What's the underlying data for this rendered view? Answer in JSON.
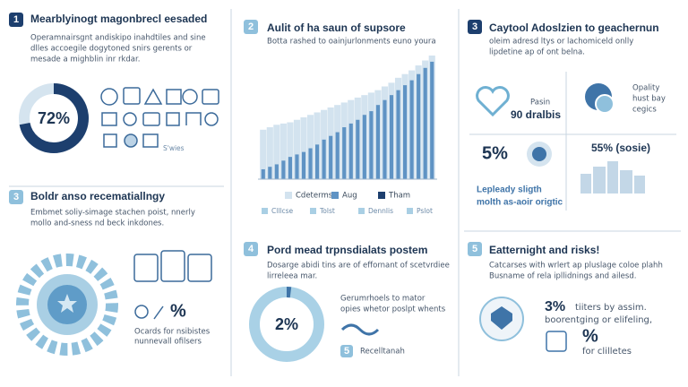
{
  "p1": {
    "badge": "1",
    "title": "Mearblyinogt magonbrecl eesaded",
    "body": [
      "Operamnairsgnt andiskipo inahdtiles and sine",
      "dlles accoegile dogytoned snirs gerents or",
      "mesade a mighblin inr rkdar."
    ],
    "donut": {
      "value": 72,
      "label": "72%"
    },
    "icons_caption": "S'wies"
  },
  "p2": {
    "badge": "2",
    "title": "Aulit of ha saun of supsore",
    "subtitle": "Botta rashed to oainjurlonments euno youra",
    "ylim": [
      0,
      100
    ],
    "series": [
      {
        "color": "#d3e3ef",
        "values": [
          40,
          42,
          44,
          45,
          46,
          48,
          50,
          52,
          54,
          56,
          58,
          60,
          62,
          64,
          66,
          68,
          70,
          72,
          75,
          78,
          82,
          85,
          88,
          92,
          96,
          100
        ]
      },
      {
        "color": "#5f93c4",
        "values": [
          8,
          10,
          12,
          15,
          18,
          20,
          22,
          25,
          28,
          32,
          35,
          38,
          42,
          45,
          48,
          52,
          55,
          60,
          64,
          68,
          72,
          76,
          80,
          85,
          90,
          95
        ]
      }
    ],
    "legend": [
      "Cdeterms",
      "Aug",
      "Tham"
    ],
    "footer": [
      "Clllcse",
      "Tolst",
      "Dennlis",
      "Pslot"
    ]
  },
  "p3": {
    "badge": "3",
    "title": "Caytool Adoslzien to geachernun",
    "body": [
      "oleim adresd ltys or lachomiceld onlly",
      "lipdetine ap of ont belna."
    ],
    "heart_label": "Pasin",
    "heart_value": "90 dralbis",
    "gear_lines": [
      "Opality",
      "hust bay",
      "cegics"
    ],
    "stat": "5%",
    "stat2": "55% (sosie)",
    "caption": [
      "Lepleady sligth",
      "molth as-aoir origtic"
    ]
  },
  "p4": {
    "badge": "3",
    "title": "Boldr anso recematiallngy",
    "body": [
      "Embmet soliy-simage stachen poist, nnerly",
      "mollo and-sness nd beck inkdones."
    ],
    "pct": "%",
    "caption": [
      "Ocards for nsibistes",
      "nunnevall ofilsers"
    ]
  },
  "p5": {
    "badge": "4",
    "title": "Pord mead trpnsdialats postem",
    "body": [
      "Dosarge abidi tins are of effornant of scetvrdiee",
      "lirreleea mar."
    ],
    "donut": {
      "value": 2,
      "label": "2%"
    },
    "lines": [
      "Gerumrhoels to mator",
      "opies whetor poslpt whents"
    ],
    "small_badge": "5",
    "small_label": "Recelltanah"
  },
  "p6": {
    "badge": "5",
    "title": "Eatternight and risks!",
    "body": [
      "Catcarses with wrlert ap pluslage coloe plahh",
      "Busname of rela ipllidnings and ailesd."
    ],
    "stat": "3%",
    "stat_lines": [
      "tiiters by assim.",
      "boorentging or elifeling,"
    ],
    "pct": "%",
    "pct_label": "for clilletes"
  }
}
